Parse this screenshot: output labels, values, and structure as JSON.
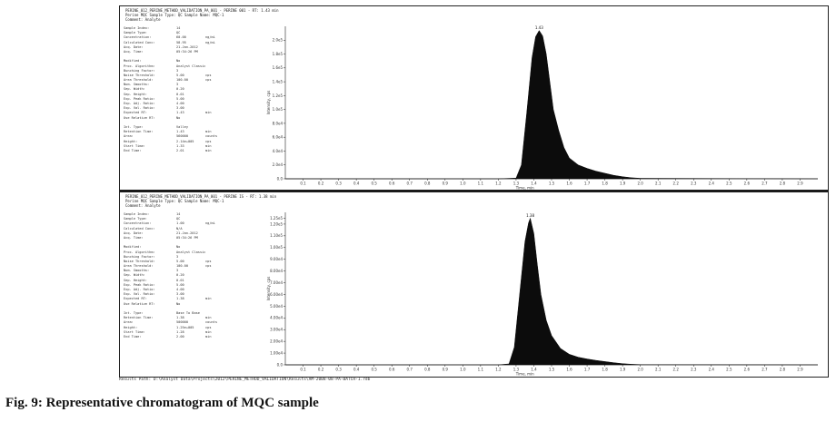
{
  "caption": "Fig. 9: Representative chromatogram of MQC sample",
  "path_line": "Results Path: D:\\Analyst Data\\Projects\\2012\\PERINE_METHOD_VALIDATION\\Results\\AM-2008-08-PA-BATCH-1.rdb",
  "panels": [
    {
      "header": [
        "PERINE_012_PERINE_METHOD_VALIDATION_PA_001 - PERINE 001 - RT: 1.43 min",
        "Perine MQC  Sample Type: QC  Sample Name: MQC-1",
        "Comment: Analyte"
      ],
      "info": [
        {
          "k": "Sample Index:",
          "v": "14",
          "u": ""
        },
        {
          "k": "Sample Type:",
          "v": "QC",
          "u": ""
        },
        {
          "k": "Concentration:",
          "v": "60.00",
          "u": "ng/mL"
        },
        {
          "k": "Calculated Conc:",
          "v": "58.95",
          "u": "ng/mL"
        },
        {
          "k": "Acq. Date:",
          "v": "21-Jan-2012",
          "u": ""
        },
        {
          "k": "Acq. Time:",
          "v": "05:34:26 PM",
          "u": ""
        },
        {
          "k": "",
          "v": "",
          "u": ""
        },
        {
          "k": "Modified:",
          "v": "No",
          "u": ""
        },
        {
          "k": "Proc. Algorithm:",
          "v": "Analyst Classic",
          "u": ""
        },
        {
          "k": "Bunching Factor:",
          "v": "3",
          "u": ""
        },
        {
          "k": "Noise Threshold:",
          "v": "5.00",
          "u": "cps"
        },
        {
          "k": "Area Threshold:",
          "v": "100.00",
          "u": "cps"
        },
        {
          "k": "Num. Smooths:",
          "v": "3",
          "u": ""
        },
        {
          "k": "Sep. Width:",
          "v": "0.20",
          "u": ""
        },
        {
          "k": "Sep. Height:",
          "v": "0.01",
          "u": ""
        },
        {
          "k": "Exp. Peak Ratio:",
          "v": "5.00",
          "u": ""
        },
        {
          "k": "Exp. Adj. Ratio:",
          "v": "4.00",
          "u": ""
        },
        {
          "k": "Exp. Val. Ratio:",
          "v": "3.00",
          "u": ""
        },
        {
          "k": "Expected RT:",
          "v": "1.43",
          "u": "min"
        },
        {
          "k": "Use Relative RT:",
          "v": "No",
          "u": ""
        },
        {
          "k": "",
          "v": "",
          "u": ""
        },
        {
          "k": "Int. Type:",
          "v": "Valley",
          "u": ""
        },
        {
          "k": "Retention Time:",
          "v": "1.43",
          "u": "min"
        },
        {
          "k": "Area:",
          "v": "560000",
          "u": "counts"
        },
        {
          "k": "Height:",
          "v": "2.14e+005",
          "u": "cps"
        },
        {
          "k": "Start Time:",
          "v": "1.33",
          "u": "min"
        },
        {
          "k": "End Time:",
          "v": "2.01",
          "u": "min"
        }
      ]
    },
    {
      "header": [
        "PERINE_012_PERINE_METHOD_VALIDATION_PA_001 - PERINE IS - RT: 1.38 min",
        "Perine MQC  Sample Type: QC  Sample Name: MQC-1",
        "Comment: Analyte"
      ],
      "info": [
        {
          "k": "Sample Index:",
          "v": "14",
          "u": ""
        },
        {
          "k": "Sample Type:",
          "v": "QC",
          "u": ""
        },
        {
          "k": "Concentration:",
          "v": "1.00",
          "u": "ng/mL"
        },
        {
          "k": "Calculated Conc:",
          "v": "N/A",
          "u": ""
        },
        {
          "k": "Acq. Date:",
          "v": "21-Jan-2012",
          "u": ""
        },
        {
          "k": "Acq. Time:",
          "v": "05:34:26 PM",
          "u": ""
        },
        {
          "k": "",
          "v": "",
          "u": ""
        },
        {
          "k": "Modified:",
          "v": "No",
          "u": ""
        },
        {
          "k": "Proc. Algorithm:",
          "v": "Analyst Classic",
          "u": ""
        },
        {
          "k": "Bunching Factor:",
          "v": "3",
          "u": ""
        },
        {
          "k": "Noise Threshold:",
          "v": "5.00",
          "u": "cps"
        },
        {
          "k": "Area Threshold:",
          "v": "100.00",
          "u": "cps"
        },
        {
          "k": "Num. Smooths:",
          "v": "3",
          "u": ""
        },
        {
          "k": "Sep. Width:",
          "v": "0.20",
          "u": ""
        },
        {
          "k": "Sep. Height:",
          "v": "0.01",
          "u": ""
        },
        {
          "k": "Exp. Peak Ratio:",
          "v": "5.00",
          "u": ""
        },
        {
          "k": "Exp. Adj. Ratio:",
          "v": "4.00",
          "u": ""
        },
        {
          "k": "Exp. Val. Ratio:",
          "v": "3.00",
          "u": ""
        },
        {
          "k": "Expected RT:",
          "v": "1.38",
          "u": "min"
        },
        {
          "k": "Use Relative RT:",
          "v": "No",
          "u": ""
        },
        {
          "k": "",
          "v": "",
          "u": ""
        },
        {
          "k": "Int. Type:",
          "v": "Base To Base",
          "u": ""
        },
        {
          "k": "Retention Time:",
          "v": "1.38",
          "u": "min"
        },
        {
          "k": "Area:",
          "v": "500000",
          "u": "counts"
        },
        {
          "k": "Height:",
          "v": "1.25e+005",
          "u": "cps"
        },
        {
          "k": "Start Time:",
          "v": "1.28",
          "u": "min"
        },
        {
          "k": "End Time:",
          "v": "2.00",
          "u": "min"
        }
      ]
    }
  ],
  "chart_data": [
    {
      "type": "area",
      "title": "",
      "xlabel": "Time, min",
      "ylabel": "Intensity, cps",
      "xlim": [
        0,
        3.0
      ],
      "ylim": [
        0,
        220000
      ],
      "xticks": [
        "0.1",
        "0.2",
        "0.3",
        "0.4",
        "0.5",
        "0.6",
        "0.7",
        "0.8",
        "0.9",
        "1.0",
        "1.1",
        "1.2",
        "1.3",
        "1.4",
        "1.5",
        "1.6",
        "1.7",
        "1.8",
        "1.9",
        "2.0",
        "2.1",
        "2.2",
        "2.3",
        "2.4",
        "2.5",
        "2.6",
        "2.7",
        "2.8",
        "2.9"
      ],
      "yticks": [
        "2.0e5",
        "1.8e5",
        "1.6e5",
        "1.4e5",
        "1.2e5",
        "1.0e5",
        "8.0e4",
        "6.0e4",
        "4.0e4",
        "2.0e4",
        "0.0"
      ],
      "grid": false,
      "peak_label": "1.43",
      "x": [
        0.0,
        1.2,
        1.3,
        1.33,
        1.36,
        1.39,
        1.41,
        1.43,
        1.45,
        1.47,
        1.49,
        1.51,
        1.54,
        1.57,
        1.6,
        1.65,
        1.7,
        1.75,
        1.8,
        1.85,
        1.9,
        1.95,
        2.0,
        3.0
      ],
      "y": [
        0,
        0,
        1000,
        20000,
        95000,
        175000,
        205000,
        214000,
        206000,
        180000,
        140000,
        100000,
        70000,
        45000,
        30000,
        20000,
        15000,
        11000,
        8000,
        5000,
        3000,
        1500,
        700,
        0
      ]
    },
    {
      "type": "area",
      "title": "",
      "xlabel": "Time, min",
      "ylabel": "Intensity, cps",
      "xlim": [
        0,
        3.0
      ],
      "ylim": [
        0,
        130000
      ],
      "xticks": [
        "0.1",
        "0.2",
        "0.3",
        "0.4",
        "0.5",
        "0.6",
        "0.7",
        "0.8",
        "0.9",
        "1.0",
        "1.1",
        "1.2",
        "1.3",
        "1.4",
        "1.5",
        "1.6",
        "1.7",
        "1.8",
        "1.9",
        "2.0",
        "2.1",
        "2.2",
        "2.3",
        "2.4",
        "2.5",
        "2.6",
        "2.7",
        "2.8",
        "2.9"
      ],
      "yticks": [
        "1.25e5",
        "1.20e5",
        "1.10e5",
        "1.00e5",
        "9.00e4",
        "8.00e4",
        "7.00e4",
        "6.00e4",
        "5.00e4",
        "4.00e4",
        "3.00e4",
        "2.00e4",
        "1.00e4",
        "0.0"
      ],
      "grid": false,
      "peak_label": "1.38",
      "x": [
        0.0,
        1.2,
        1.26,
        1.29,
        1.32,
        1.35,
        1.37,
        1.38,
        1.4,
        1.42,
        1.44,
        1.47,
        1.5,
        1.55,
        1.6,
        1.65,
        1.7,
        1.75,
        1.8,
        1.85,
        1.9,
        1.95,
        2.0,
        3.0
      ],
      "y": [
        0,
        0,
        800,
        15000,
        60000,
        105000,
        121000,
        125000,
        112000,
        85000,
        60000,
        38000,
        25000,
        14000,
        9000,
        6500,
        5000,
        3800,
        2800,
        1800,
        1000,
        500,
        200,
        0
      ]
    }
  ]
}
